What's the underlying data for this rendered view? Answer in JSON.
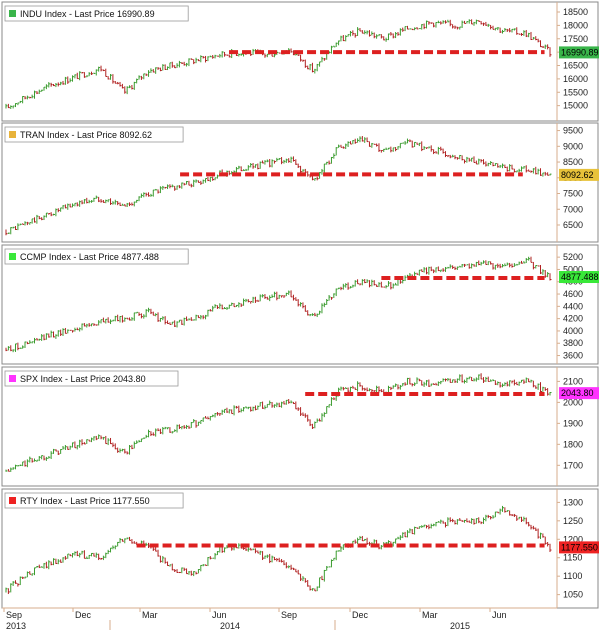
{
  "colors": {
    "up": "#3a9b2e",
    "down": "#b02020",
    "support_line": "#dd2020",
    "axis": "#d7ae8e",
    "panel_border": "#888888",
    "background": "#ffffff"
  },
  "x_axis": {
    "month_labels": [
      "Sep",
      "Dec",
      "Mar",
      "Jun",
      "Sep",
      "Dec",
      "Mar",
      "Jun"
    ],
    "year_labels": [
      "2013",
      "2014",
      "2015"
    ]
  },
  "chart_data": [
    {
      "type": "line",
      "legend_label": "INDU Index - Last Price 16990.89",
      "legend_color": "#39b54a",
      "last_price": "16990.89",
      "price_color": "#39b54a",
      "y_ticks": [
        "18500",
        "18000",
        "17500",
        "17000",
        "16500",
        "16000",
        "15500",
        "15000"
      ],
      "ylim": [
        14650,
        18650
      ],
      "support_level": 17000,
      "support_range": [
        0.41,
        0.99
      ],
      "x": [
        "2013-09",
        "2013-10",
        "2013-11",
        "2013-12",
        "2014-01",
        "2014-02",
        "2014-03",
        "2014-04",
        "2014-05",
        "2014-06",
        "2014-07",
        "2014-08",
        "2014-09",
        "2014-10",
        "2014-11",
        "2014-12",
        "2015-01",
        "2015-02",
        "2015-03",
        "2015-04",
        "2015-05",
        "2015-06",
        "2015-07",
        "2015-08"
      ],
      "values": [
        14900,
        15400,
        15800,
        16100,
        16400,
        15500,
        16300,
        16500,
        16700,
        16900,
        17000,
        16900,
        17100,
        16300,
        17400,
        17800,
        17500,
        17900,
        18100,
        18000,
        18200,
        17800,
        17700,
        16990
      ]
    },
    {
      "type": "line",
      "legend_label": "TRAN Index - Last Price 8092.62",
      "legend_color": "#e8b33a",
      "last_price": "8092.62",
      "price_color": "#e8c23a",
      "y_ticks": [
        "9500",
        "9000",
        "8500",
        "8000",
        "7500",
        "7000",
        "6500"
      ],
      "ylim": [
        6150,
        9550
      ],
      "support_level": 8110,
      "support_range": [
        0.32,
        0.95
      ],
      "x": [
        "2013-09",
        "2013-10",
        "2013-11",
        "2013-12",
        "2014-01",
        "2014-02",
        "2014-03",
        "2014-04",
        "2014-05",
        "2014-06",
        "2014-07",
        "2014-08",
        "2014-09",
        "2014-10",
        "2014-11",
        "2014-12",
        "2015-01",
        "2015-02",
        "2015-03",
        "2015-04",
        "2015-05",
        "2015-06",
        "2015-07",
        "2015-08"
      ],
      "values": [
        6300,
        6600,
        6900,
        7200,
        7350,
        7100,
        7500,
        7700,
        7850,
        8100,
        8300,
        8450,
        8600,
        7900,
        8900,
        9200,
        8800,
        9100,
        8900,
        8700,
        8500,
        8300,
        8250,
        8092
      ]
    },
    {
      "type": "line",
      "legend_label": "CCMP Index - Last Price 4877.488",
      "legend_color": "#39e839",
      "last_price": "4877.488",
      "price_color": "#39e839",
      "y_ticks": [
        "5200",
        "5000",
        "4800",
        "4600",
        "4400",
        "4200",
        "4000",
        "3800",
        "3600"
      ],
      "ylim": [
        3560,
        5300
      ],
      "support_level": 4860,
      "support_range": [
        0.69,
        0.99
      ],
      "x": [
        "2013-09",
        "2013-10",
        "2013-11",
        "2013-12",
        "2014-01",
        "2014-02",
        "2014-03",
        "2014-04",
        "2014-05",
        "2014-06",
        "2014-07",
        "2014-08",
        "2014-09",
        "2014-10",
        "2014-11",
        "2014-12",
        "2015-01",
        "2015-02",
        "2015-03",
        "2015-04",
        "2015-05",
        "2015-06",
        "2015-07",
        "2015-08"
      ],
      "values": [
        3700,
        3800,
        3950,
        4050,
        4150,
        4200,
        4300,
        4100,
        4200,
        4400,
        4450,
        4550,
        4600,
        4200,
        4700,
        4800,
        4700,
        4900,
        5000,
        5050,
        5100,
        5050,
        5150,
        4877
      ]
    },
    {
      "type": "line",
      "legend_label": "SPX Index - Last Price 2043.80",
      "legend_color": "#ff33ff",
      "last_price": "2043.80",
      "price_color": "#ff33ff",
      "y_ticks": [
        "2100",
        "2000",
        "1900",
        "1800",
        "1700"
      ],
      "ylim": [
        1630,
        2140
      ],
      "support_level": 2040,
      "support_range": [
        0.55,
        0.99
      ],
      "x": [
        "2013-09",
        "2013-10",
        "2013-11",
        "2013-12",
        "2014-01",
        "2014-02",
        "2014-03",
        "2014-04",
        "2014-05",
        "2014-06",
        "2014-07",
        "2014-08",
        "2014-09",
        "2014-10",
        "2014-11",
        "2014-12",
        "2015-01",
        "2015-02",
        "2015-03",
        "2015-04",
        "2015-05",
        "2015-06",
        "2015-07",
        "2015-08"
      ],
      "values": [
        1670,
        1720,
        1760,
        1800,
        1830,
        1760,
        1850,
        1870,
        1900,
        1950,
        1970,
        1990,
        2000,
        1880,
        2050,
        2080,
        2050,
        2100,
        2090,
        2110,
        2120,
        2090,
        2100,
        2044
      ]
    },
    {
      "type": "line",
      "legend_label": "RTY Index - Last Price 1177.550",
      "legend_color": "#ee2222",
      "last_price": "1177.550",
      "price_color": "#ee2222",
      "y_ticks": [
        "1300",
        "1250",
        "1200",
        "1150",
        "1100",
        "1050"
      ],
      "ylim": [
        1030,
        1320
      ],
      "support_level": 1183,
      "support_range": [
        0.24,
        0.99
      ],
      "x": [
        "2013-09",
        "2013-10",
        "2013-11",
        "2013-12",
        "2014-01",
        "2014-02",
        "2014-03",
        "2014-04",
        "2014-05",
        "2014-06",
        "2014-07",
        "2014-08",
        "2014-09",
        "2014-10",
        "2014-11",
        "2014-12",
        "2015-01",
        "2015-02",
        "2015-03",
        "2015-04",
        "2015-05",
        "2015-06",
        "2015-07",
        "2015-08"
      ],
      "values": [
        1060,
        1110,
        1140,
        1160,
        1150,
        1200,
        1180,
        1120,
        1110,
        1170,
        1180,
        1150,
        1130,
        1060,
        1170,
        1200,
        1180,
        1220,
        1240,
        1250,
        1250,
        1280,
        1250,
        1178
      ]
    }
  ]
}
